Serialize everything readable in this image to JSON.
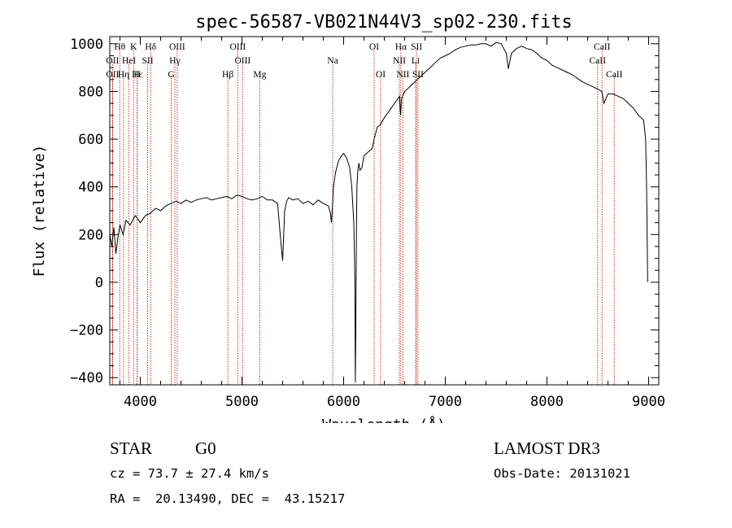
{
  "chart_data": {
    "type": "line",
    "title": "spec-56587-VB021N44V3_sp02-230.fits",
    "xlabel": "Wavelength (Å)",
    "ylabel": "Flux (relative)",
    "xlim": [
      3700,
      9100
    ],
    "ylim": [
      -430,
      1030
    ],
    "xticks": [
      4000,
      5000,
      6000,
      7000,
      8000,
      9000
    ],
    "yticks": [
      -400,
      -200,
      0,
      200,
      400,
      600,
      800,
      1000
    ],
    "xtick_labels": [
      "4000",
      "5000",
      "6000",
      "7000",
      "8000",
      "9000"
    ],
    "ytick_labels": [
      "−400",
      "−200",
      "0",
      "200",
      "400",
      "600",
      "800",
      "1000"
    ],
    "series": [
      {
        "name": "flux",
        "x": [
          3700,
          3720,
          3740,
          3760,
          3780,
          3800,
          3830,
          3860,
          3900,
          3950,
          4000,
          4050,
          4100,
          4150,
          4200,
          4250,
          4300,
          4350,
          4400,
          4450,
          4500,
          4550,
          4600,
          4650,
          4700,
          4750,
          4800,
          4850,
          4900,
          4950,
          5000,
          5050,
          5100,
          5150,
          5200,
          5250,
          5300,
          5350,
          5380,
          5400,
          5420,
          5440,
          5460,
          5500,
          5550,
          5600,
          5650,
          5700,
          5750,
          5800,
          5850,
          5870,
          5880,
          5890,
          5900,
          5920,
          5950,
          5980,
          6000,
          6030,
          6060,
          6080,
          6100,
          6110,
          6115,
          6120,
          6125,
          6130,
          6140,
          6150,
          6160,
          6180,
          6200,
          6250,
          6280,
          6300,
          6330,
          6360,
          6400,
          6450,
          6500,
          6550,
          6560,
          6570,
          6600,
          6650,
          6700,
          6750,
          6800,
          6850,
          6900,
          6950,
          7000,
          7050,
          7100,
          7150,
          7200,
          7250,
          7300,
          7350,
          7400,
          7450,
          7500,
          7550,
          7600,
          7620,
          7650,
          7700,
          7750,
          7800,
          7850,
          7900,
          7950,
          8000,
          8050,
          8100,
          8150,
          8200,
          8250,
          8300,
          8350,
          8400,
          8450,
          8500,
          8540,
          8560,
          8600,
          8650,
          8700,
          8750,
          8800,
          8850,
          8900,
          8950,
          8970,
          8980,
          8990
        ],
        "values": [
          200,
          150,
          230,
          120,
          190,
          240,
          200,
          260,
          240,
          280,
          250,
          280,
          290,
          310,
          300,
          320,
          330,
          340,
          330,
          345,
          335,
          345,
          350,
          355,
          345,
          350,
          355,
          360,
          350,
          365,
          360,
          350,
          345,
          350,
          360,
          345,
          345,
          330,
          180,
          90,
          300,
          340,
          355,
          345,
          350,
          330,
          340,
          325,
          345,
          330,
          320,
          290,
          250,
          320,
          400,
          460,
          510,
          530,
          540,
          520,
          480,
          400,
          250,
          20,
          -420,
          -200,
          150,
          400,
          470,
          500,
          470,
          480,
          530,
          550,
          560,
          600,
          650,
          660,
          690,
          720,
          750,
          780,
          700,
          770,
          800,
          820,
          840,
          860,
          880,
          900,
          920,
          940,
          950,
          960,
          975,
          985,
          990,
          995,
          995,
          1000,
          1000,
          990,
          1005,
          1000,
          960,
          895,
          960,
          980,
          990,
          980,
          975,
          960,
          940,
          930,
          910,
          900,
          890,
          880,
          870,
          855,
          840,
          830,
          820,
          810,
          800,
          750,
          790,
          790,
          780,
          770,
          750,
          730,
          700,
          680,
          600,
          400,
          0
        ]
      }
    ],
    "spectral_lines": [
      {
        "label": "Hθ",
        "wavelength": 3798,
        "row": 0
      },
      {
        "label": "K",
        "wavelength": 3934,
        "row": 0
      },
      {
        "label": "Hδ",
        "wavelength": 4102,
        "row": 0
      },
      {
        "label": "OIII",
        "wavelength": 4363,
        "row": 0
      },
      {
        "label": "OIII",
        "wavelength": 4959,
        "row": 0
      },
      {
        "label": "OI",
        "wavelength": 6300,
        "row": 0
      },
      {
        "label": "Hα",
        "wavelength": 6563,
        "row": 0
      },
      {
        "label": "SII",
        "wavelength": 6717,
        "row": 0
      },
      {
        "label": "CaII",
        "wavelength": 8542,
        "row": 0
      },
      {
        "label": "OII",
        "wavelength": 3727,
        "row": 1
      },
      {
        "label": "HeI",
        "wavelength": 3889,
        "row": 1
      },
      {
        "label": "SII",
        "wavelength": 4072,
        "row": 1
      },
      {
        "label": "Hγ",
        "wavelength": 4340,
        "row": 1
      },
      {
        "label": "OIII",
        "wavelength": 5007,
        "row": 1
      },
      {
        "label": "Na",
        "wavelength": 5893,
        "row": 1
      },
      {
        "label": "NII",
        "wavelength": 6548,
        "row": 1
      },
      {
        "label": "Li",
        "wavelength": 6708,
        "row": 1
      },
      {
        "label": "CaII",
        "wavelength": 8498,
        "row": 1
      },
      {
        "label": "OII",
        "wavelength": 3727,
        "row": 2
      },
      {
        "label": "Hε",
        "wavelength": 3970,
        "row": 2
      },
      {
        "label": "Hη",
        "wavelength": 3835,
        "row": 2
      },
      {
        "label": "H",
        "wavelength": 3968,
        "row": 2
      },
      {
        "label": "G",
        "wavelength": 4304,
        "row": 2
      },
      {
        "label": "Hβ",
        "wavelength": 4861,
        "row": 2
      },
      {
        "label": "Mg",
        "wavelength": 5175,
        "row": 2
      },
      {
        "label": "OI",
        "wavelength": 6364,
        "row": 2
      },
      {
        "label": "NII",
        "wavelength": 6583,
        "row": 2
      },
      {
        "label": "SII",
        "wavelength": 6731,
        "row": 2
      },
      {
        "label": "CaII",
        "wavelength": 8662,
        "row": 2
      }
    ]
  },
  "info": {
    "class": "STAR",
    "subclass": "G0",
    "survey": "LAMOST DR3",
    "redshift": "cz = 73.7 ± 27.4 km/s",
    "obs_date": "Obs-Date: 20131021",
    "coords": "RA =  20.13490, DEC =  43.15217"
  },
  "colors": {
    "line_marker": "#b22222",
    "spectrum": "#000000"
  }
}
